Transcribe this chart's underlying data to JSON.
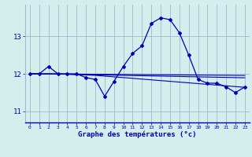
{
  "hours": [
    0,
    1,
    2,
    3,
    4,
    5,
    6,
    7,
    8,
    9,
    10,
    11,
    12,
    13,
    14,
    15,
    16,
    17,
    18,
    19,
    20,
    21,
    22,
    23
  ],
  "temps_main": [
    12.0,
    12.0,
    12.2,
    12.0,
    12.0,
    12.0,
    11.9,
    11.85,
    11.4,
    11.8,
    12.2,
    12.55,
    12.75,
    13.35,
    13.5,
    13.45,
    13.1,
    12.5,
    11.85,
    11.75,
    11.75,
    11.65,
    11.5,
    11.65
  ],
  "line1": [
    12.0,
    12.0,
    12.0,
    12.0,
    11.99,
    11.98,
    11.97,
    11.96,
    11.94,
    11.92,
    11.9,
    11.88,
    11.86,
    11.84,
    11.82,
    11.8,
    11.78,
    11.76,
    11.74,
    11.72,
    11.7,
    11.68,
    11.66,
    11.64
  ],
  "line2": [
    12.0,
    12.0,
    12.0,
    11.995,
    11.99,
    11.985,
    11.98,
    11.975,
    11.97,
    11.965,
    11.96,
    11.955,
    11.95,
    11.945,
    11.94,
    11.935,
    11.93,
    11.925,
    11.92,
    11.915,
    11.91,
    11.905,
    11.9,
    11.895
  ],
  "line3": [
    12.0,
    12.0,
    12.0,
    11.998,
    11.996,
    11.994,
    11.992,
    11.99,
    11.988,
    11.986,
    11.984,
    11.982,
    11.98,
    11.978,
    11.976,
    11.974,
    11.972,
    11.97,
    11.968,
    11.966,
    11.964,
    11.962,
    11.96,
    11.958
  ],
  "color": "#0000bb",
  "bg_color": "#d4eeee",
  "grid_color": "#99bbcc",
  "xlabel": "Graphe des températures (°c)",
  "ylim": [
    10.7,
    13.85
  ],
  "yticks": [
    11,
    12,
    13
  ],
  "xlim": [
    -0.5,
    23.5
  ]
}
